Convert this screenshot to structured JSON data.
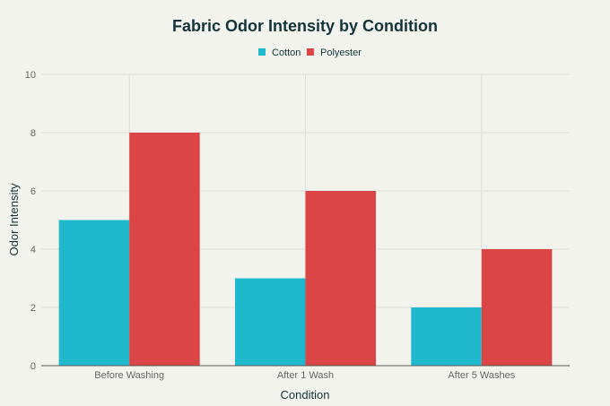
{
  "chart_data": {
    "type": "bar",
    "title": "Fabric Odor Intensity by Condition",
    "xlabel": "Condition",
    "ylabel": "Odor Intensity",
    "categories": [
      "Before Washing",
      "After 1 Wash",
      "After 5 Washes"
    ],
    "series": [
      {
        "name": "Cotton",
        "values": [
          5,
          3,
          2
        ],
        "color": "#1FB8CD"
      },
      {
        "name": "Polyester",
        "values": [
          8,
          6,
          4
        ],
        "color": "#DB4545"
      }
    ],
    "ylim": [
      0,
      10
    ],
    "yticks": [
      "0",
      "2",
      "4",
      "6",
      "8",
      "10"
    ],
    "grid": true,
    "legend_position": "top-center"
  }
}
